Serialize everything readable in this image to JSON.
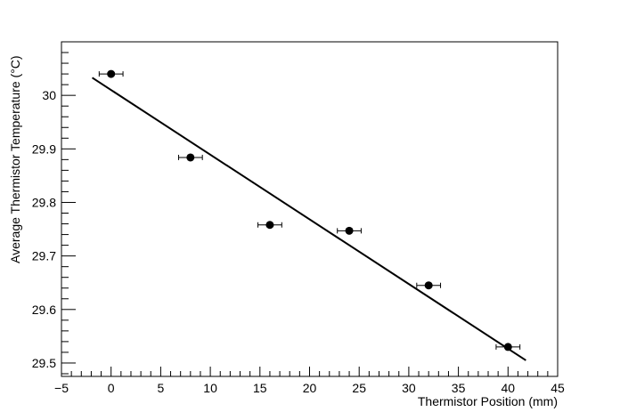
{
  "chart_data": {
    "type": "scatter",
    "xlabel": "Thermistor Position (mm)",
    "ylabel": "Average Thermistor Temperature (°C)",
    "xlim": [
      -5,
      45
    ],
    "ylim": [
      29.475,
      30.1
    ],
    "x_ticks": [
      -5,
      0,
      5,
      10,
      15,
      20,
      25,
      30,
      35,
      40,
      45
    ],
    "x_tick_labels": [
      "−5",
      "0",
      "5",
      "10",
      "15",
      "20",
      "25",
      "30",
      "35",
      "40",
      "45"
    ],
    "y_ticks": [
      29.5,
      29.6,
      29.7,
      29.8,
      29.9,
      30.0
    ],
    "y_tick_labels": [
      "29.5",
      "29.6",
      "29.7",
      "29.8",
      "29.9",
      "30"
    ],
    "grid": false,
    "points": [
      {
        "x": 0,
        "y": 30.04,
        "xerr": 1.2
      },
      {
        "x": 8,
        "y": 29.884,
        "xerr": 1.2
      },
      {
        "x": 16,
        "y": 29.758,
        "xerr": 1.2
      },
      {
        "x": 24,
        "y": 29.747,
        "xerr": 1.2
      },
      {
        "x": 32,
        "y": 29.645,
        "xerr": 1.2
      },
      {
        "x": 40,
        "y": 29.53,
        "xerr": 1.2
      }
    ],
    "fit_line": {
      "x": [
        -1.9,
        41.8
      ],
      "y": [
        30.033,
        29.505
      ]
    }
  }
}
